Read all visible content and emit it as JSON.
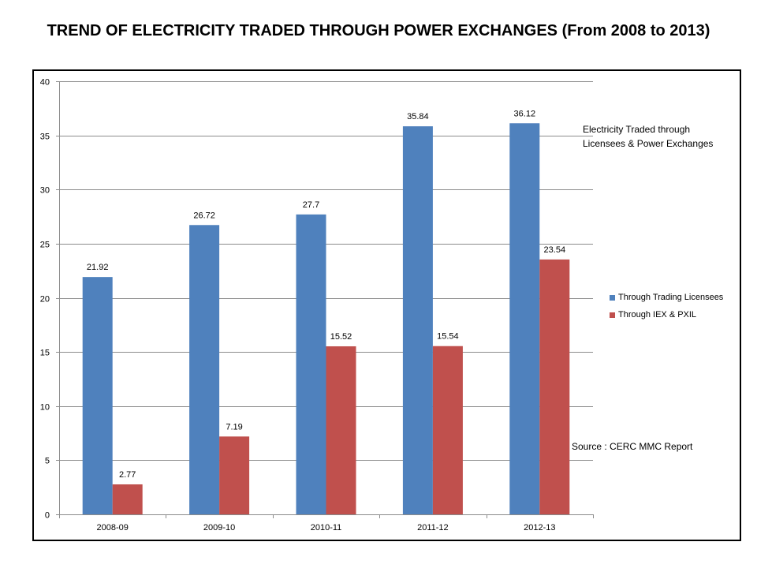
{
  "page_title": "TREND OF ELECTRICITY TRADED THROUGH POWER EXCHANGES (From 2008 to 2013)",
  "chart_data": {
    "type": "bar",
    "title": "Electricity Traded through Licensees & Power Exchanges",
    "categories": [
      "2008-09",
      "2009-10",
      "2010-11",
      "2011-12",
      "2012-13"
    ],
    "series": [
      {
        "name": "Through Trading Licensees",
        "values": [
          21.92,
          26.72,
          27.7,
          35.84,
          36.12
        ],
        "color": "#4f81bd"
      },
      {
        "name": "Through IEX & PXIL",
        "values": [
          2.77,
          7.19,
          15.52,
          15.54,
          23.54
        ],
        "color": "#c0504d"
      }
    ],
    "ylim": [
      0,
      40
    ],
    "yticks": [
      0,
      5,
      10,
      15,
      20,
      25,
      30,
      35,
      40
    ],
    "grid": true,
    "legend_position": "right",
    "xlabel": "",
    "ylabel": ""
  },
  "source_note": "Source : CERC MMC  Report"
}
